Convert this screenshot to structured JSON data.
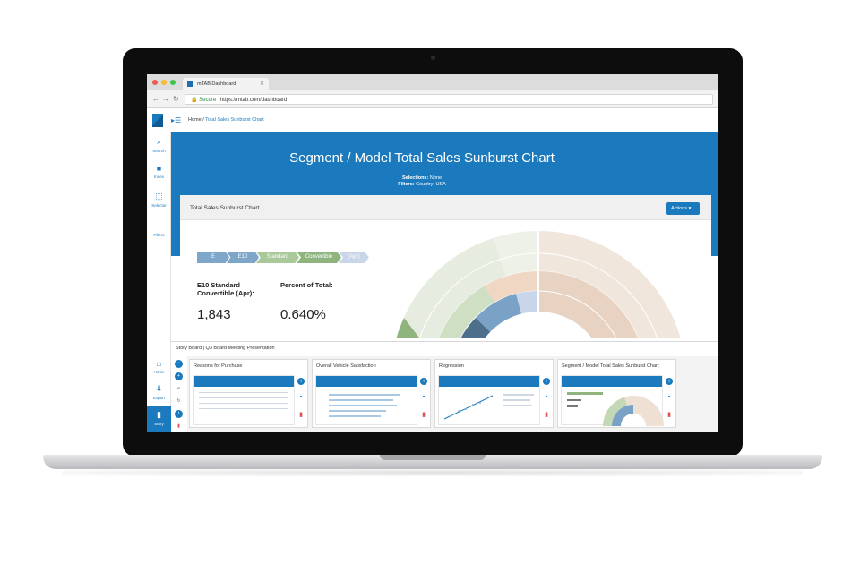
{
  "browser": {
    "tab_title": "mTAB Dashboard",
    "secure_label": "Secure",
    "url": "https://mtab.com/dashboard"
  },
  "breadcrumb": {
    "home": "Home",
    "separator": "/",
    "current": "Total Sales Sunburst Chart"
  },
  "sidebar": {
    "items": [
      {
        "label": "Search",
        "icon": "search-icon"
      },
      {
        "label": "Index",
        "icon": "folder-icon"
      },
      {
        "label": "Selector",
        "icon": "selector-icon"
      },
      {
        "label": "Filters",
        "icon": "filters-icon"
      }
    ],
    "bottom": [
      {
        "label": "Home",
        "icon": "home-icon"
      },
      {
        "label": "Export",
        "icon": "export-icon"
      },
      {
        "label": "Story",
        "icon": "book-icon"
      }
    ]
  },
  "hero": {
    "title": "Segment / Model Total Sales Sunburst Chart",
    "selections_label": "Selections:",
    "selections_value": "None",
    "filters_label": "Filters:",
    "filters_value": "Country: USA"
  },
  "card": {
    "title": "Total Sales Sunburst Chart",
    "actions_label": "Actions",
    "chips": [
      "E",
      "E10",
      "Standard",
      "Convertible",
      "(Apr)"
    ],
    "metric1_label_line1": "E10 Standard",
    "metric1_label_line2": "Convertible (Apr):",
    "metric1_value": "1,843",
    "metric2_label": "Percent of Total:",
    "metric2_value": "0.640%"
  },
  "story": {
    "board_label": "Story Board",
    "separator": "|",
    "presentation": "Q3 Board Meeting Presentation",
    "slides": [
      {
        "title": "Reasons for Purchase"
      },
      {
        "title": "Overall Vehicle Satisfaction"
      },
      {
        "title": "Regression"
      },
      {
        "title": "Segment / Model Total Sales Sunburst Chart"
      }
    ]
  },
  "colors": {
    "brand": "#1b79bd",
    "chip_blue": "#7ea6c8",
    "chip_green": "#8fb47e",
    "chip_light": "#c9d6ea"
  }
}
